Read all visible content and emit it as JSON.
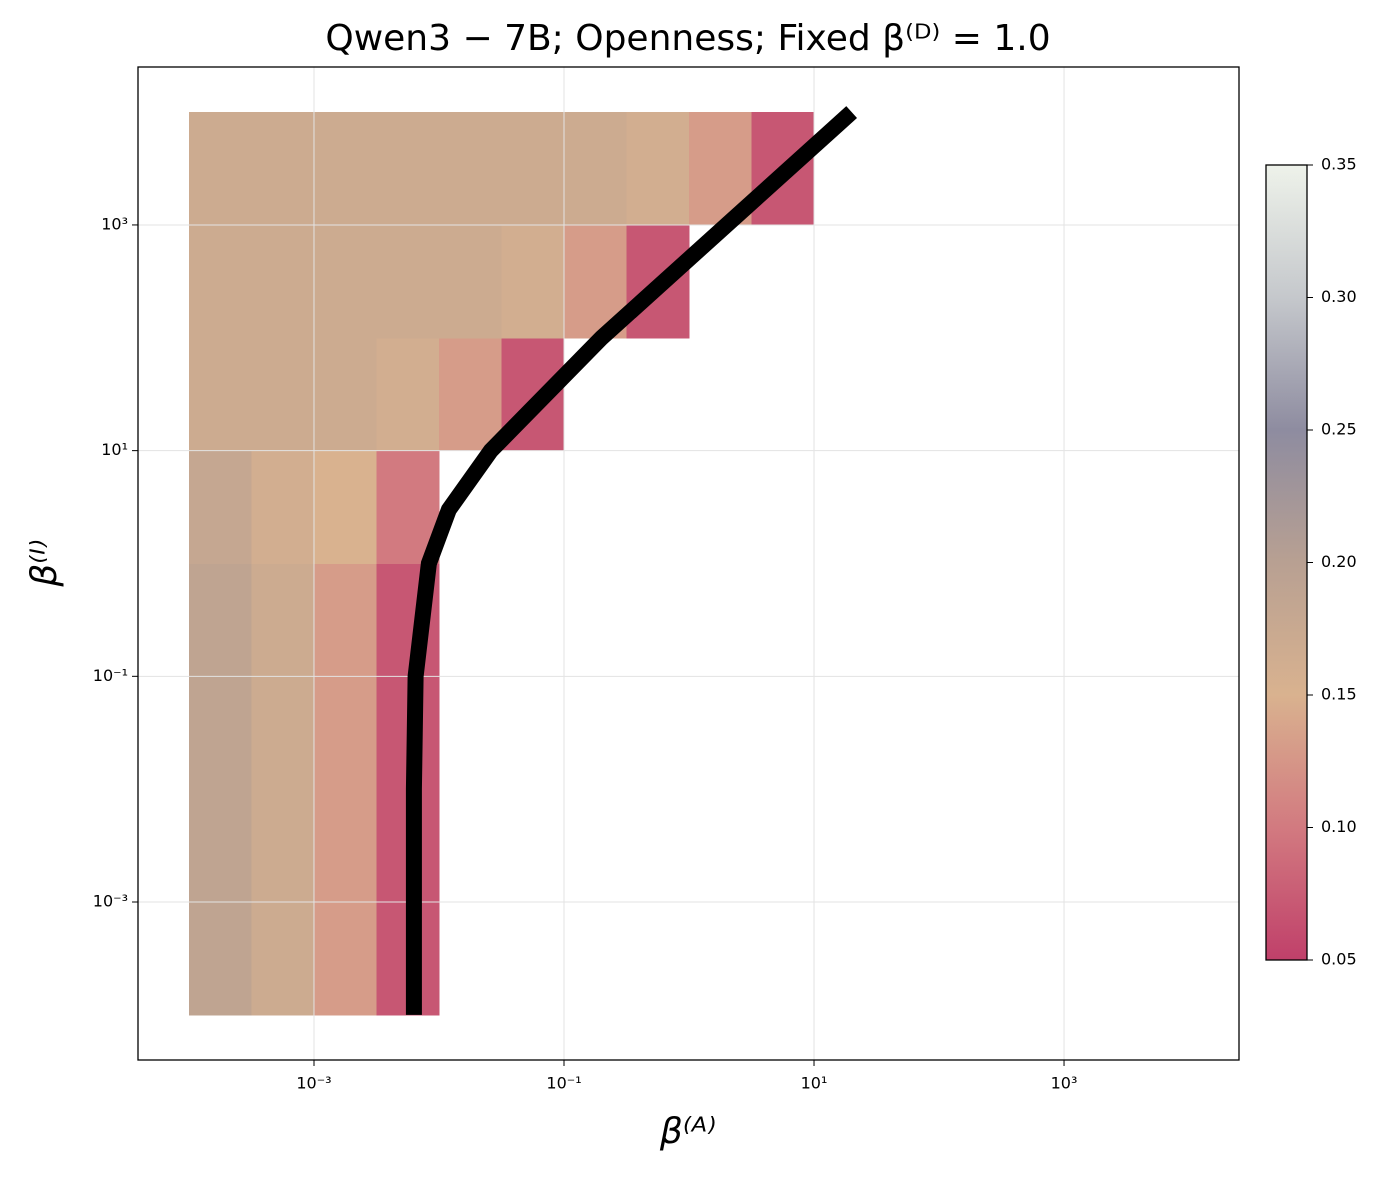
{
  "chart_data": {
    "type": "heatmap",
    "title": "Qwen3 − 7B;  Openness;  Fixed β⁽ᴰ⁾ = 1.0",
    "x_label": "β⁽ᴬ⁾",
    "y_label": "β⁽ᴵ⁾",
    "x_log": true,
    "y_log": true,
    "grid": true,
    "xlim": [
      3.91e-05,
      25100
    ],
    "ylim": [
      3.98e-05,
      25100
    ],
    "xticks": [
      {
        "value": 0.001,
        "label": "10⁻³"
      },
      {
        "value": 0.1,
        "label": "10⁻¹"
      },
      {
        "value": 10,
        "label": "10¹"
      },
      {
        "value": 1000,
        "label": "10³"
      }
    ],
    "yticks": [
      {
        "value": 0.001,
        "label": "10⁻³"
      },
      {
        "value": 0.1,
        "label": "10⁻¹"
      },
      {
        "value": 10,
        "label": "10¹"
      },
      {
        "value": 1000,
        "label": "10³"
      }
    ],
    "x_edges": [
      0.0001,
      0.000316,
      0.001,
      0.00316,
      0.01,
      0.0316,
      0.1,
      0.316,
      1,
      3.16,
      10,
      31.6
    ],
    "y_edges": [
      0.0001,
      0.001,
      0.01,
      0.1,
      1,
      10,
      100,
      1000,
      10000
    ],
    "z": [
      [
        0.19,
        0.17,
        0.13,
        0.07,
        null,
        null,
        null,
        null,
        null,
        null,
        null
      ],
      [
        0.19,
        0.17,
        0.13,
        0.07,
        null,
        null,
        null,
        null,
        null,
        null,
        null
      ],
      [
        0.19,
        0.17,
        0.13,
        0.07,
        null,
        null,
        null,
        null,
        null,
        null,
        null
      ],
      [
        0.19,
        0.17,
        0.13,
        0.07,
        null,
        null,
        null,
        null,
        null,
        null,
        null
      ],
      [
        0.18,
        0.16,
        0.15,
        0.1,
        null,
        null,
        null,
        null,
        null,
        null,
        null
      ],
      [
        0.17,
        0.17,
        0.17,
        0.16,
        0.13,
        0.07,
        null,
        null,
        null,
        null,
        null
      ],
      [
        0.17,
        0.17,
        0.17,
        0.17,
        0.17,
        0.16,
        0.13,
        0.07,
        null,
        null,
        null
      ],
      [
        0.17,
        0.17,
        0.17,
        0.17,
        0.17,
        0.17,
        0.17,
        0.16,
        0.13,
        0.07,
        null
      ]
    ],
    "colormap": [
      "#c0406a",
      "#d27a80",
      "#d9b28f",
      "#b8a092",
      "#8e8ca0",
      "#c5c8cc",
      "#eef2ea"
    ],
    "clim": [
      0.05,
      0.35
    ],
    "cticks": [
      0.05,
      0.1,
      0.15,
      0.2,
      0.25,
      0.3,
      0.35
    ],
    "boundary": {
      "color": "#000000",
      "x": [
        0.0063,
        0.0063,
        0.0065,
        0.0083,
        0.012,
        0.026,
        0.2,
        2.0,
        20
      ],
      "y": [
        0.0001,
        0.01,
        0.1,
        1,
        3,
        10,
        100,
        1000,
        10000
      ]
    }
  }
}
